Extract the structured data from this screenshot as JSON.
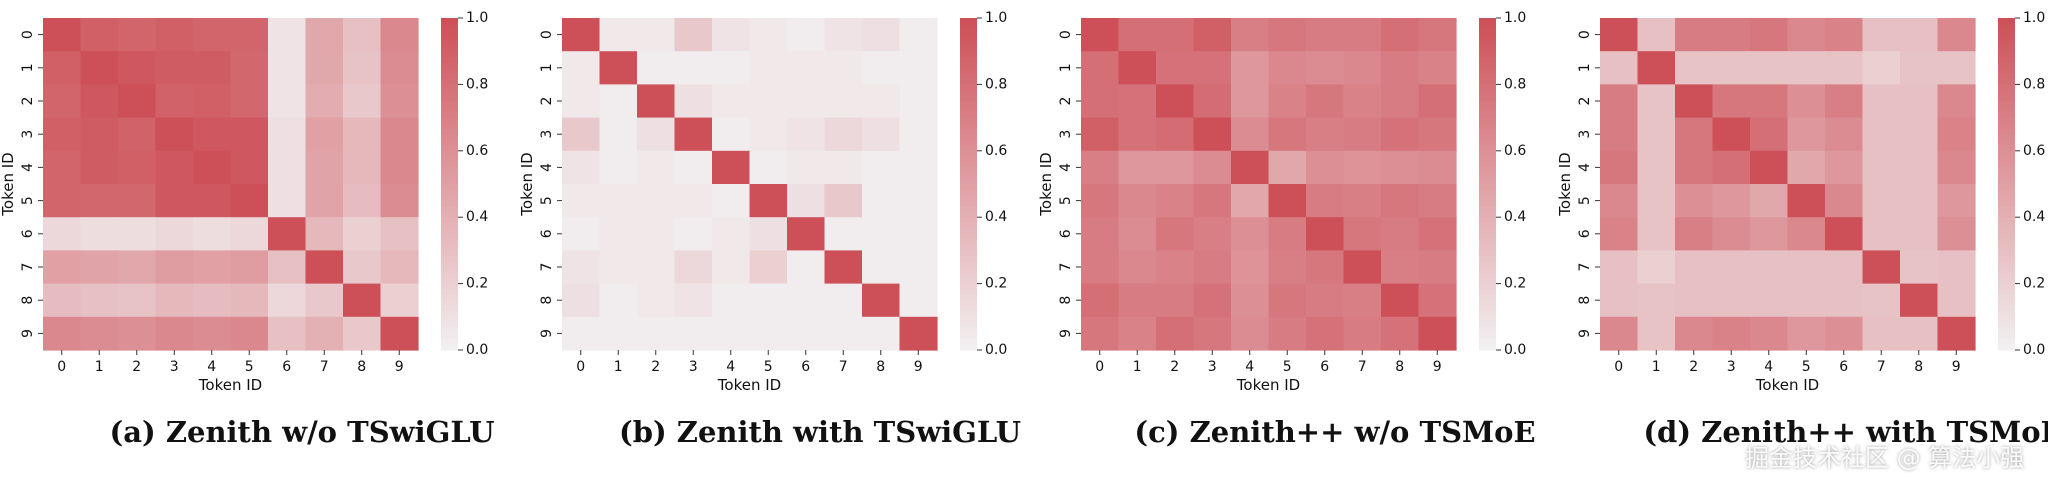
{
  "chart_data": [
    {
      "type": "heatmap",
      "title": "",
      "xlabel": "Token ID",
      "ylabel": "Token ID",
      "x_ticks": [
        "0",
        "1",
        "2",
        "3",
        "4",
        "5",
        "6",
        "7",
        "8",
        "9"
      ],
      "y_ticks": [
        "0",
        "1",
        "2",
        "3",
        "4",
        "5",
        "6",
        "7",
        "8",
        "9"
      ],
      "colorbar": {
        "ticks": [
          "0.0",
          "0.2",
          "0.4",
          "0.6",
          "0.8",
          "1.0"
        ],
        "range": [
          0,
          1
        ]
      },
      "caption": "(a) Zenith w/o TSwiGLU",
      "values": [
        [
          1.0,
          0.9,
          0.87,
          0.9,
          0.87,
          0.87,
          0.08,
          0.45,
          0.3,
          0.65
        ],
        [
          0.9,
          1.0,
          0.95,
          0.92,
          0.92,
          0.85,
          0.08,
          0.45,
          0.28,
          0.62
        ],
        [
          0.87,
          0.95,
          1.0,
          0.88,
          0.9,
          0.85,
          0.08,
          0.42,
          0.25,
          0.6
        ],
        [
          0.9,
          0.92,
          0.88,
          1.0,
          0.95,
          0.95,
          0.1,
          0.5,
          0.35,
          0.65
        ],
        [
          0.87,
          0.92,
          0.9,
          0.95,
          1.0,
          0.95,
          0.1,
          0.48,
          0.35,
          0.65
        ],
        [
          0.87,
          0.85,
          0.85,
          0.95,
          0.95,
          1.0,
          0.1,
          0.48,
          0.32,
          0.62
        ],
        [
          0.15,
          0.12,
          0.12,
          0.15,
          0.12,
          0.15,
          1.0,
          0.35,
          0.2,
          0.3
        ],
        [
          0.5,
          0.48,
          0.45,
          0.52,
          0.5,
          0.52,
          0.3,
          1.0,
          0.25,
          0.35
        ],
        [
          0.32,
          0.3,
          0.28,
          0.35,
          0.32,
          0.35,
          0.15,
          0.25,
          1.0,
          0.2
        ],
        [
          0.65,
          0.62,
          0.6,
          0.65,
          0.62,
          0.65,
          0.3,
          0.4,
          0.25,
          1.0
        ]
      ]
    },
    {
      "type": "heatmap",
      "title": "",
      "xlabel": "Token ID",
      "ylabel": "Token ID",
      "x_ticks": [
        "0",
        "1",
        "2",
        "3",
        "4",
        "5",
        "6",
        "7",
        "8",
        "9"
      ],
      "y_ticks": [
        "0",
        "1",
        "2",
        "3",
        "4",
        "5",
        "6",
        "7",
        "8",
        "9"
      ],
      "colorbar": {
        "ticks": [
          "0.0",
          "0.2",
          "0.4",
          "0.6",
          "0.8",
          "1.0"
        ],
        "range": [
          0,
          1
        ]
      },
      "caption": "(b) Zenith with TSwiGLU",
      "values": [
        [
          1.0,
          0.05,
          0.05,
          0.25,
          0.08,
          0.05,
          0.02,
          0.08,
          0.1,
          0.02
        ],
        [
          0.05,
          1.0,
          0.02,
          0.02,
          0.02,
          0.05,
          0.05,
          0.05,
          0.02,
          0.02
        ],
        [
          0.05,
          0.02,
          1.0,
          0.1,
          0.05,
          0.05,
          0.05,
          0.05,
          0.05,
          0.02
        ],
        [
          0.25,
          0.02,
          0.1,
          1.0,
          0.02,
          0.05,
          0.08,
          0.15,
          0.1,
          0.02
        ],
        [
          0.08,
          0.02,
          0.05,
          0.02,
          1.0,
          0.02,
          0.05,
          0.05,
          0.02,
          0.02
        ],
        [
          0.05,
          0.05,
          0.05,
          0.05,
          0.02,
          1.0,
          0.1,
          0.25,
          0.02,
          0.02
        ],
        [
          0.02,
          0.05,
          0.05,
          0.02,
          0.05,
          0.1,
          1.0,
          0.02,
          0.02,
          0.02
        ],
        [
          0.08,
          0.05,
          0.05,
          0.15,
          0.05,
          0.2,
          0.02,
          1.0,
          0.02,
          0.02
        ],
        [
          0.1,
          0.02,
          0.05,
          0.08,
          0.02,
          0.02,
          0.02,
          0.02,
          1.0,
          0.02
        ],
        [
          0.02,
          0.02,
          0.02,
          0.02,
          0.02,
          0.02,
          0.02,
          0.02,
          0.02,
          1.0
        ]
      ]
    },
    {
      "type": "heatmap",
      "title": "",
      "xlabel": "Token ID",
      "ylabel": "Token ID",
      "x_ticks": [
        "0",
        "1",
        "2",
        "3",
        "4",
        "5",
        "6",
        "7",
        "8",
        "9"
      ],
      "y_ticks": [
        "0",
        "1",
        "2",
        "3",
        "4",
        "5",
        "6",
        "7",
        "8",
        "9"
      ],
      "colorbar": {
        "ticks": [
          "0.0",
          "0.2",
          "0.4",
          "0.6",
          "0.8",
          "1.0"
        ],
        "range": [
          0,
          1
        ]
      },
      "caption": "(c) Zenith++ w/o TSMoE",
      "values": [
        [
          1.0,
          0.8,
          0.8,
          0.9,
          0.7,
          0.75,
          0.72,
          0.72,
          0.8,
          0.75
        ],
        [
          0.8,
          1.0,
          0.78,
          0.78,
          0.55,
          0.65,
          0.62,
          0.65,
          0.72,
          0.68
        ],
        [
          0.8,
          0.78,
          1.0,
          0.82,
          0.55,
          0.68,
          0.75,
          0.68,
          0.72,
          0.8
        ],
        [
          0.9,
          0.78,
          0.82,
          1.0,
          0.62,
          0.75,
          0.7,
          0.72,
          0.78,
          0.75
        ],
        [
          0.7,
          0.55,
          0.55,
          0.62,
          1.0,
          0.45,
          0.6,
          0.58,
          0.6,
          0.62
        ],
        [
          0.75,
          0.65,
          0.68,
          0.75,
          0.45,
          1.0,
          0.72,
          0.7,
          0.75,
          0.72
        ],
        [
          0.72,
          0.62,
          0.75,
          0.7,
          0.6,
          0.72,
          1.0,
          0.75,
          0.72,
          0.78
        ],
        [
          0.72,
          0.65,
          0.68,
          0.72,
          0.58,
          0.7,
          0.75,
          1.0,
          0.7,
          0.72
        ],
        [
          0.8,
          0.72,
          0.72,
          0.78,
          0.6,
          0.75,
          0.72,
          0.7,
          1.0,
          0.78
        ],
        [
          0.75,
          0.68,
          0.8,
          0.75,
          0.62,
          0.72,
          0.78,
          0.72,
          0.78,
          1.0
        ]
      ]
    },
    {
      "type": "heatmap",
      "title": "",
      "xlabel": "Token ID",
      "ylabel": "Token ID",
      "x_ticks": [
        "0",
        "1",
        "2",
        "3",
        "4",
        "5",
        "6",
        "7",
        "8",
        "9"
      ],
      "y_ticks": [
        "0",
        "1",
        "2",
        "3",
        "4",
        "5",
        "6",
        "7",
        "8",
        "9"
      ],
      "colorbar": {
        "ticks": [
          "0.0",
          "0.2",
          "0.4",
          "0.6",
          "0.8",
          "1.0"
        ],
        "range": [
          0,
          1
        ]
      },
      "caption": "(d) Zenith++ with TSMoE",
      "values": [
        [
          1.0,
          0.3,
          0.72,
          0.72,
          0.75,
          0.65,
          0.68,
          0.3,
          0.3,
          0.65
        ],
        [
          0.3,
          1.0,
          0.28,
          0.28,
          0.28,
          0.28,
          0.28,
          0.2,
          0.28,
          0.28
        ],
        [
          0.72,
          0.28,
          1.0,
          0.75,
          0.75,
          0.6,
          0.7,
          0.3,
          0.3,
          0.65
        ],
        [
          0.72,
          0.28,
          0.75,
          1.0,
          0.8,
          0.55,
          0.62,
          0.3,
          0.3,
          0.68
        ],
        [
          0.75,
          0.28,
          0.75,
          0.8,
          1.0,
          0.45,
          0.55,
          0.3,
          0.3,
          0.65
        ],
        [
          0.65,
          0.28,
          0.6,
          0.55,
          0.45,
          1.0,
          0.65,
          0.3,
          0.3,
          0.55
        ],
        [
          0.68,
          0.28,
          0.7,
          0.62,
          0.55,
          0.65,
          1.0,
          0.3,
          0.3,
          0.6
        ],
        [
          0.3,
          0.2,
          0.3,
          0.3,
          0.3,
          0.3,
          0.3,
          1.0,
          0.28,
          0.3
        ],
        [
          0.3,
          0.28,
          0.3,
          0.3,
          0.3,
          0.3,
          0.3,
          0.28,
          1.0,
          0.3
        ],
        [
          0.65,
          0.28,
          0.65,
          0.68,
          0.65,
          0.55,
          0.6,
          0.3,
          0.3,
          1.0
        ]
      ]
    }
  ],
  "watermark": "掘金技术社区 @ 算法小强"
}
